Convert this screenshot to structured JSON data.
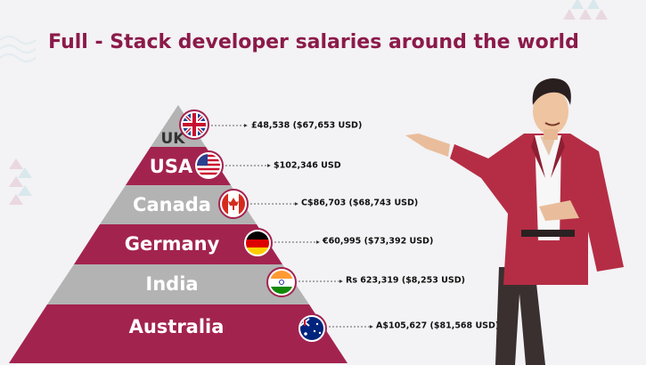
{
  "title": "Full - Stack developer salaries around the world",
  "tiers": [
    {
      "country": "UK",
      "salary": "£48,538 ($67,653 USD)"
    },
    {
      "country": "USA",
      "salary": "$102,346 USD"
    },
    {
      "country": "Canada",
      "salary": "C$86,703 ($68,743 USD)"
    },
    {
      "country": "Germany",
      "salary": "€60,995 ($73,392 USD)"
    },
    {
      "country": "India",
      "salary": "Rs 623,319 ($8,253 USD)"
    },
    {
      "country": "Australia",
      "salary": "A$105,627 ($81,568 USD)"
    }
  ]
}
